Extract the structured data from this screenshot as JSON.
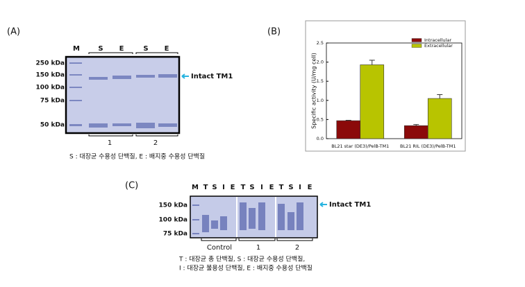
{
  "panel_a": {
    "label": "(A)",
    "lanes": [
      "M",
      "S",
      "E",
      "S",
      "E"
    ],
    "markers": [
      "250 kDa",
      "150 kDa",
      "100 kDa",
      "75 kDa",
      "50 kDa"
    ],
    "groups": [
      "1",
      "2"
    ],
    "arrow_label": "Intact TM1",
    "caption": "S : 대장균 수용성 단백질, E : 배지중 수용성 단백질"
  },
  "panel_b_label": "(B)",
  "chart_data": {
    "type": "bar",
    "y_label": "Specific activity (U/mg cell)",
    "categories": [
      "BL21 star (DE3)/PelB-TM1",
      "BL21 RIL (DE3)/PelB-TM1"
    ],
    "series": [
      {
        "name": "Intracellular",
        "color": "#8b0a0a",
        "values": [
          0.47,
          0.34
        ],
        "errors": [
          0.01,
          0.03
        ]
      },
      {
        "name": "Extracellular",
        "color": "#b8c400",
        "values": [
          1.93,
          1.05
        ],
        "errors": [
          0.12,
          0.1
        ]
      }
    ],
    "ylim": [
      0,
      2.5
    ],
    "yticks": [
      {
        "value": 0,
        "label": "0.0"
      },
      0.5,
      {
        "value": 1,
        "label": "1.0"
      },
      1.5,
      {
        "value": 2,
        "label": "2.0"
      },
      2.5
    ],
    "legend": "upper right"
  },
  "panel_c": {
    "label": "(C)",
    "lanes": [
      "M",
      "T",
      "S",
      "I",
      "E",
      "T",
      "S",
      "I",
      "E",
      "T",
      "S",
      "I",
      "E"
    ],
    "markers": [
      "150 kDa",
      "100 kDa",
      "75 kDa"
    ],
    "groups": [
      "Control",
      "1",
      "2"
    ],
    "arrow_label": "Intact TM1",
    "caption": [
      "T : 대장균 총 단백질, S : 대장균 수용성 단백질,",
      "I : 대장균 불용성 단백질, E : 배지중 수용성 단백질"
    ]
  }
}
